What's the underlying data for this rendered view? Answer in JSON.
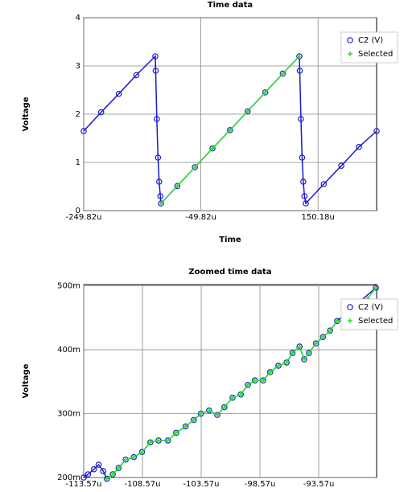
{
  "chart_data": [
    {
      "type": "scatter",
      "title": "Time data",
      "x_label": "Time",
      "y_label": "Voltage",
      "xlim": [
        -249.82,
        250.18
      ],
      "xticks": [
        {
          "value": -249.82,
          "label": "-249.82u"
        },
        {
          "value": -49.82,
          "label": "-49.82u"
        },
        {
          "value": 150.18,
          "label": "150.18u"
        }
      ],
      "ylim": [
        0,
        4
      ],
      "yticks": [
        0,
        1,
        2,
        3,
        4
      ],
      "grid": true,
      "legend": "right",
      "series": [
        {
          "name": "C2 (V)",
          "color": "#1a1acc",
          "marker": "circle",
          "x": [
            -249.82,
            -220,
            -190,
            -160,
            -127.6,
            -127,
            -125,
            -123,
            -121,
            -119,
            -117.9,
            -90,
            -60,
            -30,
            0,
            30,
            60,
            90,
            118.3,
            119,
            121,
            123,
            125,
            127,
            129.3,
            160,
            190,
            220,
            250.18
          ],
          "values": [
            1.65,
            2.04,
            2.42,
            2.81,
            3.2,
            2.9,
            1.9,
            1.1,
            0.6,
            0.3,
            0.15,
            0.51,
            0.9,
            1.29,
            1.67,
            2.06,
            2.45,
            2.84,
            3.2,
            2.9,
            1.9,
            1.1,
            0.6,
            0.3,
            0.15,
            0.55,
            0.93,
            1.32,
            1.65
          ]
        },
        {
          "name": "Selected",
          "color": "#33dd33",
          "marker": "plus",
          "x": [
            -117.9,
            -90,
            -60,
            -30,
            0,
            30,
            60,
            90,
            118.3
          ],
          "values": [
            0.15,
            0.51,
            0.9,
            1.29,
            1.67,
            2.06,
            2.45,
            2.84,
            3.2
          ]
        }
      ]
    },
    {
      "type": "scatter",
      "title": "Zoomed time data",
      "y_label": "Voltage",
      "xlim": [
        -113.57,
        -88.64
      ],
      "xticks": [
        {
          "value": -113.57,
          "label": "-113.57u"
        },
        {
          "value": -108.57,
          "label": "-108.57u"
        },
        {
          "value": -103.57,
          "label": "-103.57u"
        },
        {
          "value": -98.57,
          "label": "-98.57u"
        },
        {
          "value": -93.57,
          "label": "-93.57u"
        }
      ],
      "ylim": [
        0.2,
        0.502
      ],
      "yticks": [
        {
          "value": 0.2,
          "label": "200m"
        },
        {
          "value": 0.3,
          "label": "300m"
        },
        {
          "value": 0.4,
          "label": "400m"
        },
        {
          "value": 0.5,
          "label": "500m"
        }
      ],
      "grid": true,
      "legend": "right",
      "series": [
        {
          "name": "C2 (V)",
          "color": "#1a1acc",
          "marker": "circle",
          "x": [
            -113.57,
            -113.2,
            -112.7,
            -112.3,
            -111.9,
            -111.6,
            -111.1,
            -110.6,
            -110.0,
            -109.3,
            -108.6,
            -107.9,
            -107.2,
            -106.4,
            -105.7,
            -104.9,
            -104.2,
            -103.6,
            -102.9,
            -102.2,
            -101.6,
            -100.9,
            -100.2,
            -99.6,
            -99.0,
            -98.3,
            -97.7,
            -97.0,
            -96.3,
            -95.8,
            -95.2,
            -94.8,
            -94.4,
            -93.8,
            -93.2,
            -92.6,
            -92.0,
            -88.7
          ],
          "values": [
            0.2,
            0.205,
            0.213,
            0.22,
            0.21,
            0.198,
            0.205,
            0.215,
            0.228,
            0.232,
            0.24,
            0.255,
            0.258,
            0.258,
            0.27,
            0.28,
            0.29,
            0.3,
            0.305,
            0.298,
            0.31,
            0.325,
            0.33,
            0.345,
            0.352,
            0.352,
            0.365,
            0.375,
            0.38,
            0.395,
            0.405,
            0.385,
            0.395,
            0.41,
            0.42,
            0.43,
            0.445,
            0.497
          ]
        },
        {
          "name": "Selected",
          "color": "#33dd33",
          "marker": "plus",
          "x": [
            -111.6,
            -111.1,
            -110.6,
            -110.0,
            -109.3,
            -108.6,
            -107.9,
            -107.2,
            -106.4,
            -105.7,
            -104.9,
            -104.2,
            -103.6,
            -102.9,
            -102.2,
            -101.6,
            -100.9,
            -100.2,
            -99.6,
            -99.0,
            -98.3,
            -97.7,
            -97.0,
            -96.3,
            -95.8,
            -95.2,
            -94.8,
            -94.4,
            -93.8,
            -93.2,
            -92.6,
            -92.0,
            -91.3,
            -90.7,
            -90.0,
            -89.4,
            -88.7
          ],
          "values": [
            0.198,
            0.205,
            0.215,
            0.228,
            0.232,
            0.24,
            0.255,
            0.258,
            0.258,
            0.27,
            0.28,
            0.29,
            0.3,
            0.305,
            0.298,
            0.31,
            0.325,
            0.33,
            0.345,
            0.352,
            0.352,
            0.365,
            0.375,
            0.38,
            0.395,
            0.405,
            0.385,
            0.395,
            0.41,
            0.42,
            0.43,
            0.445,
            0.447,
            0.46,
            0.47,
            0.48,
            0.497
          ]
        }
      ]
    }
  ]
}
